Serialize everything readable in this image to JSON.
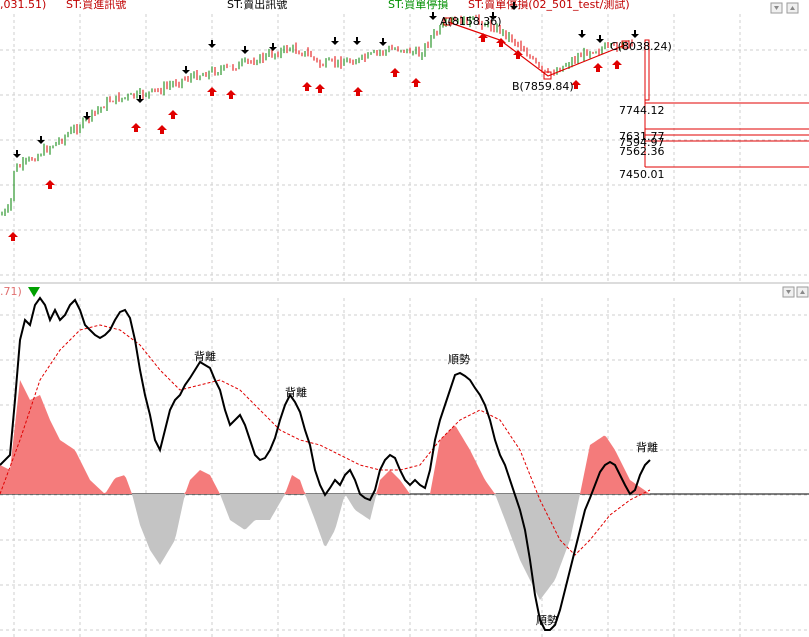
{
  "header": {
    "left_value": ",031.51)",
    "buy_entry": "ST:買進訊號",
    "sell_exit": "ST:賣出訊號",
    "buy_stop": "ST:買單停損",
    "sell_stop": "ST:賣單停損(02_501_test/測試)"
  },
  "indicator_header": {
    "value": ".71)"
  },
  "price_labels": [
    "7744.12",
    "7631.77",
    "7594.97",
    "7562.36",
    "7450.01"
  ],
  "point_labels": {
    "A": "A(8158.36)",
    "B": "B(7859.84)",
    "C": "C(8038.24)"
  },
  "annotations": [
    "背離",
    "背離",
    "順勢",
    "順勢",
    "背離"
  ],
  "colors": {
    "up": "#008000",
    "down": "#e00000",
    "positive_area": "#f47b7b",
    "negative_area": "#c4c4c4",
    "signal_line": "#e00000",
    "main_line": "#000000"
  },
  "chart_data": [
    {
      "type": "line",
      "name": "price-panel",
      "ylim": [
        7450,
        8180
      ],
      "points": {
        "A": 8158.36,
        "B": 7859.84,
        "C": 8038.24
      },
      "levels": [
        7744.12,
        7631.77,
        7594.97,
        7562.36,
        7450.01
      ]
    },
    {
      "type": "area",
      "name": "oscillator-panel",
      "ylim": [
        -1,
        1
      ]
    }
  ]
}
